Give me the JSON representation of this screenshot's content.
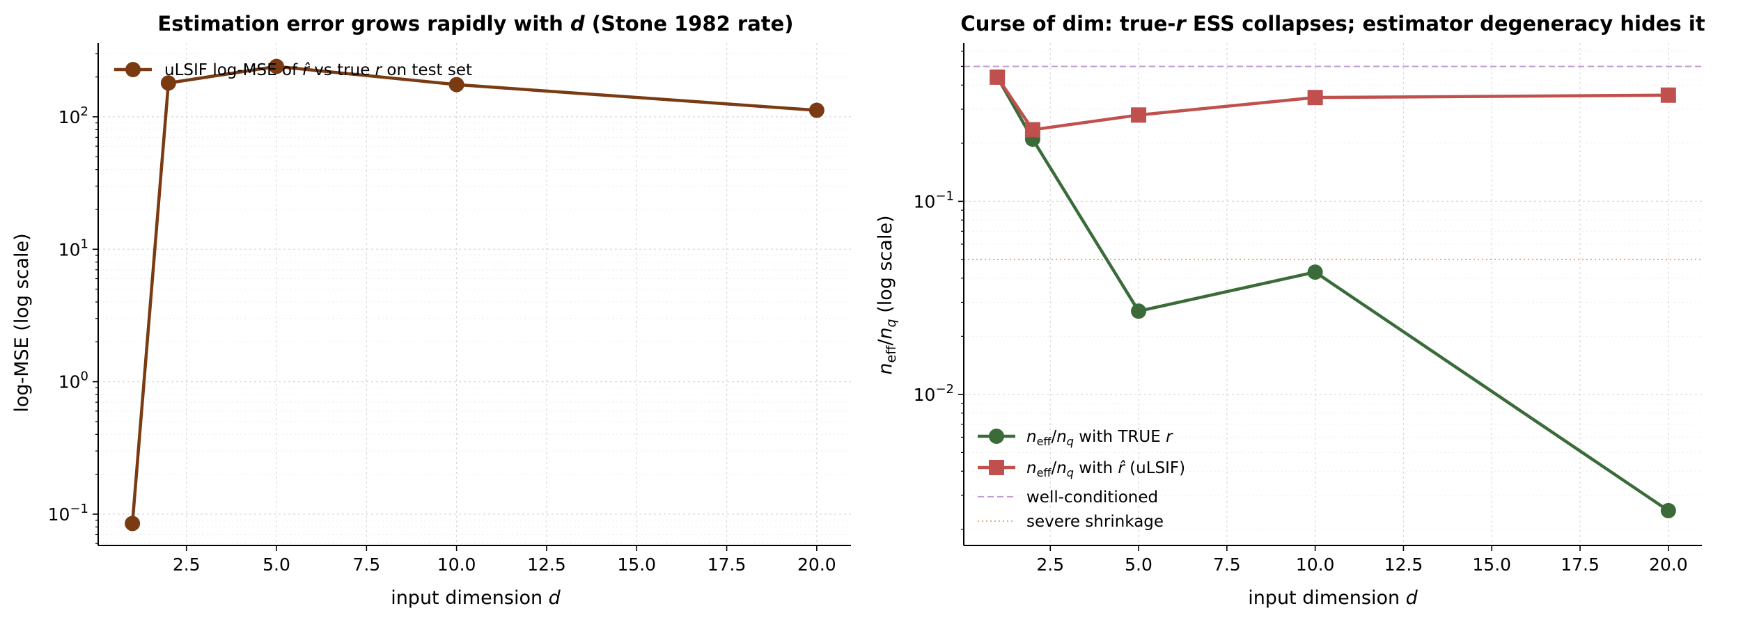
{
  "chart_data": [
    {
      "type": "line",
      "title": "Estimation error grows rapidly with d (Stone 1982 rate)",
      "xlabel": "input dimension d",
      "ylabel": "log-MSE (log scale)",
      "yscale": "log",
      "xlim": [
        0.05,
        20.95
      ],
      "ylim": [
        0.058,
        360
      ],
      "xticks": [
        2.5,
        5.0,
        7.5,
        10.0,
        12.5,
        15.0,
        17.5,
        20.0
      ],
      "xtick_labels": [
        "2.5",
        "5.0",
        "7.5",
        "10.0",
        "12.5",
        "15.0",
        "17.5",
        "20.0"
      ],
      "yticks": [
        0.1,
        1,
        10,
        100
      ],
      "grid": true,
      "legend_position": "top-left",
      "x": [
        1,
        2,
        5,
        10,
        20
      ],
      "series": [
        {
          "name": "uLSIF log-MSE of r̂ vs true r on test set",
          "values": [
            0.085,
            180,
            240,
            175,
            112
          ],
          "color": "#7a3b12",
          "marker": "circle"
        }
      ]
    },
    {
      "type": "line",
      "title": "Curse of dim: true-r ESS collapses; estimator degeneracy hides it",
      "xlabel": "input dimension d",
      "ylabel": "n_eff/n_q (log scale)",
      "yscale": "log",
      "xlim": [
        0.05,
        20.95
      ],
      "ylim": [
        0.00165,
        0.66
      ],
      "xticks": [
        2.5,
        5.0,
        7.5,
        10.0,
        12.5,
        15.0,
        17.5,
        20.0
      ],
      "xtick_labels": [
        "2.5",
        "5.0",
        "7.5",
        "10.0",
        "12.5",
        "15.0",
        "17.5",
        "20.0"
      ],
      "yticks": [
        0.01,
        0.1
      ],
      "grid": true,
      "legend_position": "bottom-left",
      "x": [
        1,
        2,
        5,
        10,
        20
      ],
      "series": [
        {
          "name": "n_eff/n_q with TRUE r",
          "values": [
            0.44,
            0.21,
            0.027,
            0.043,
            0.0025
          ],
          "color": "#3a6b38",
          "marker": "circle"
        },
        {
          "name": "n_eff/n_q with r̂ (uLSIF)",
          "values": [
            0.44,
            0.235,
            0.28,
            0.345,
            0.355
          ],
          "color": "#c0504d",
          "marker": "square"
        }
      ],
      "reference_lines": [
        {
          "name": "well-conditioned",
          "y": 0.5,
          "color": "#c39bd3",
          "style": "dashed"
        },
        {
          "name": "severe shrinkage",
          "y": 0.05,
          "color": "#f0a868",
          "style": "dotted"
        }
      ]
    }
  ]
}
